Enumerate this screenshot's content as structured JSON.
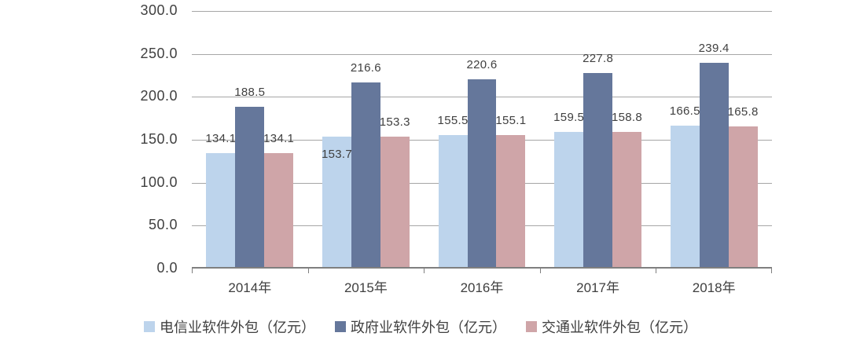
{
  "chart_data": {
    "type": "bar",
    "title": "",
    "categories": [
      "2014年",
      "2015年",
      "2016年",
      "2017年",
      "2018年"
    ],
    "series": [
      {
        "name": "电信业软件外包（亿元）",
        "color": "#BDD4EC",
        "values": [
          134.1,
          153.7,
          155.5,
          159.5,
          166.5
        ]
      },
      {
        "name": "政府业软件外包（亿元）",
        "color": "#65779B",
        "values": [
          188.5,
          216.6,
          220.6,
          227.8,
          239.4
        ]
      },
      {
        "name": "交通业软件外包（亿元）",
        "color": "#CFA5A8",
        "values": [
          134.1,
          153.3,
          155.1,
          158.8,
          165.8
        ]
      }
    ],
    "ylim": [
      0,
      300
    ],
    "ytick_step": 50,
    "ytick_labels": [
      "0.0",
      "50.0",
      "100.0",
      "150.0",
      "200.0",
      "250.0",
      "300.0"
    ],
    "grid": true,
    "data_labels": true,
    "legend_position": "bottom"
  },
  "colors": {
    "background": "#FFFFFF",
    "gridline": "#A6A6A6",
    "axis": "#7F7F7F",
    "text": "#404040"
  }
}
